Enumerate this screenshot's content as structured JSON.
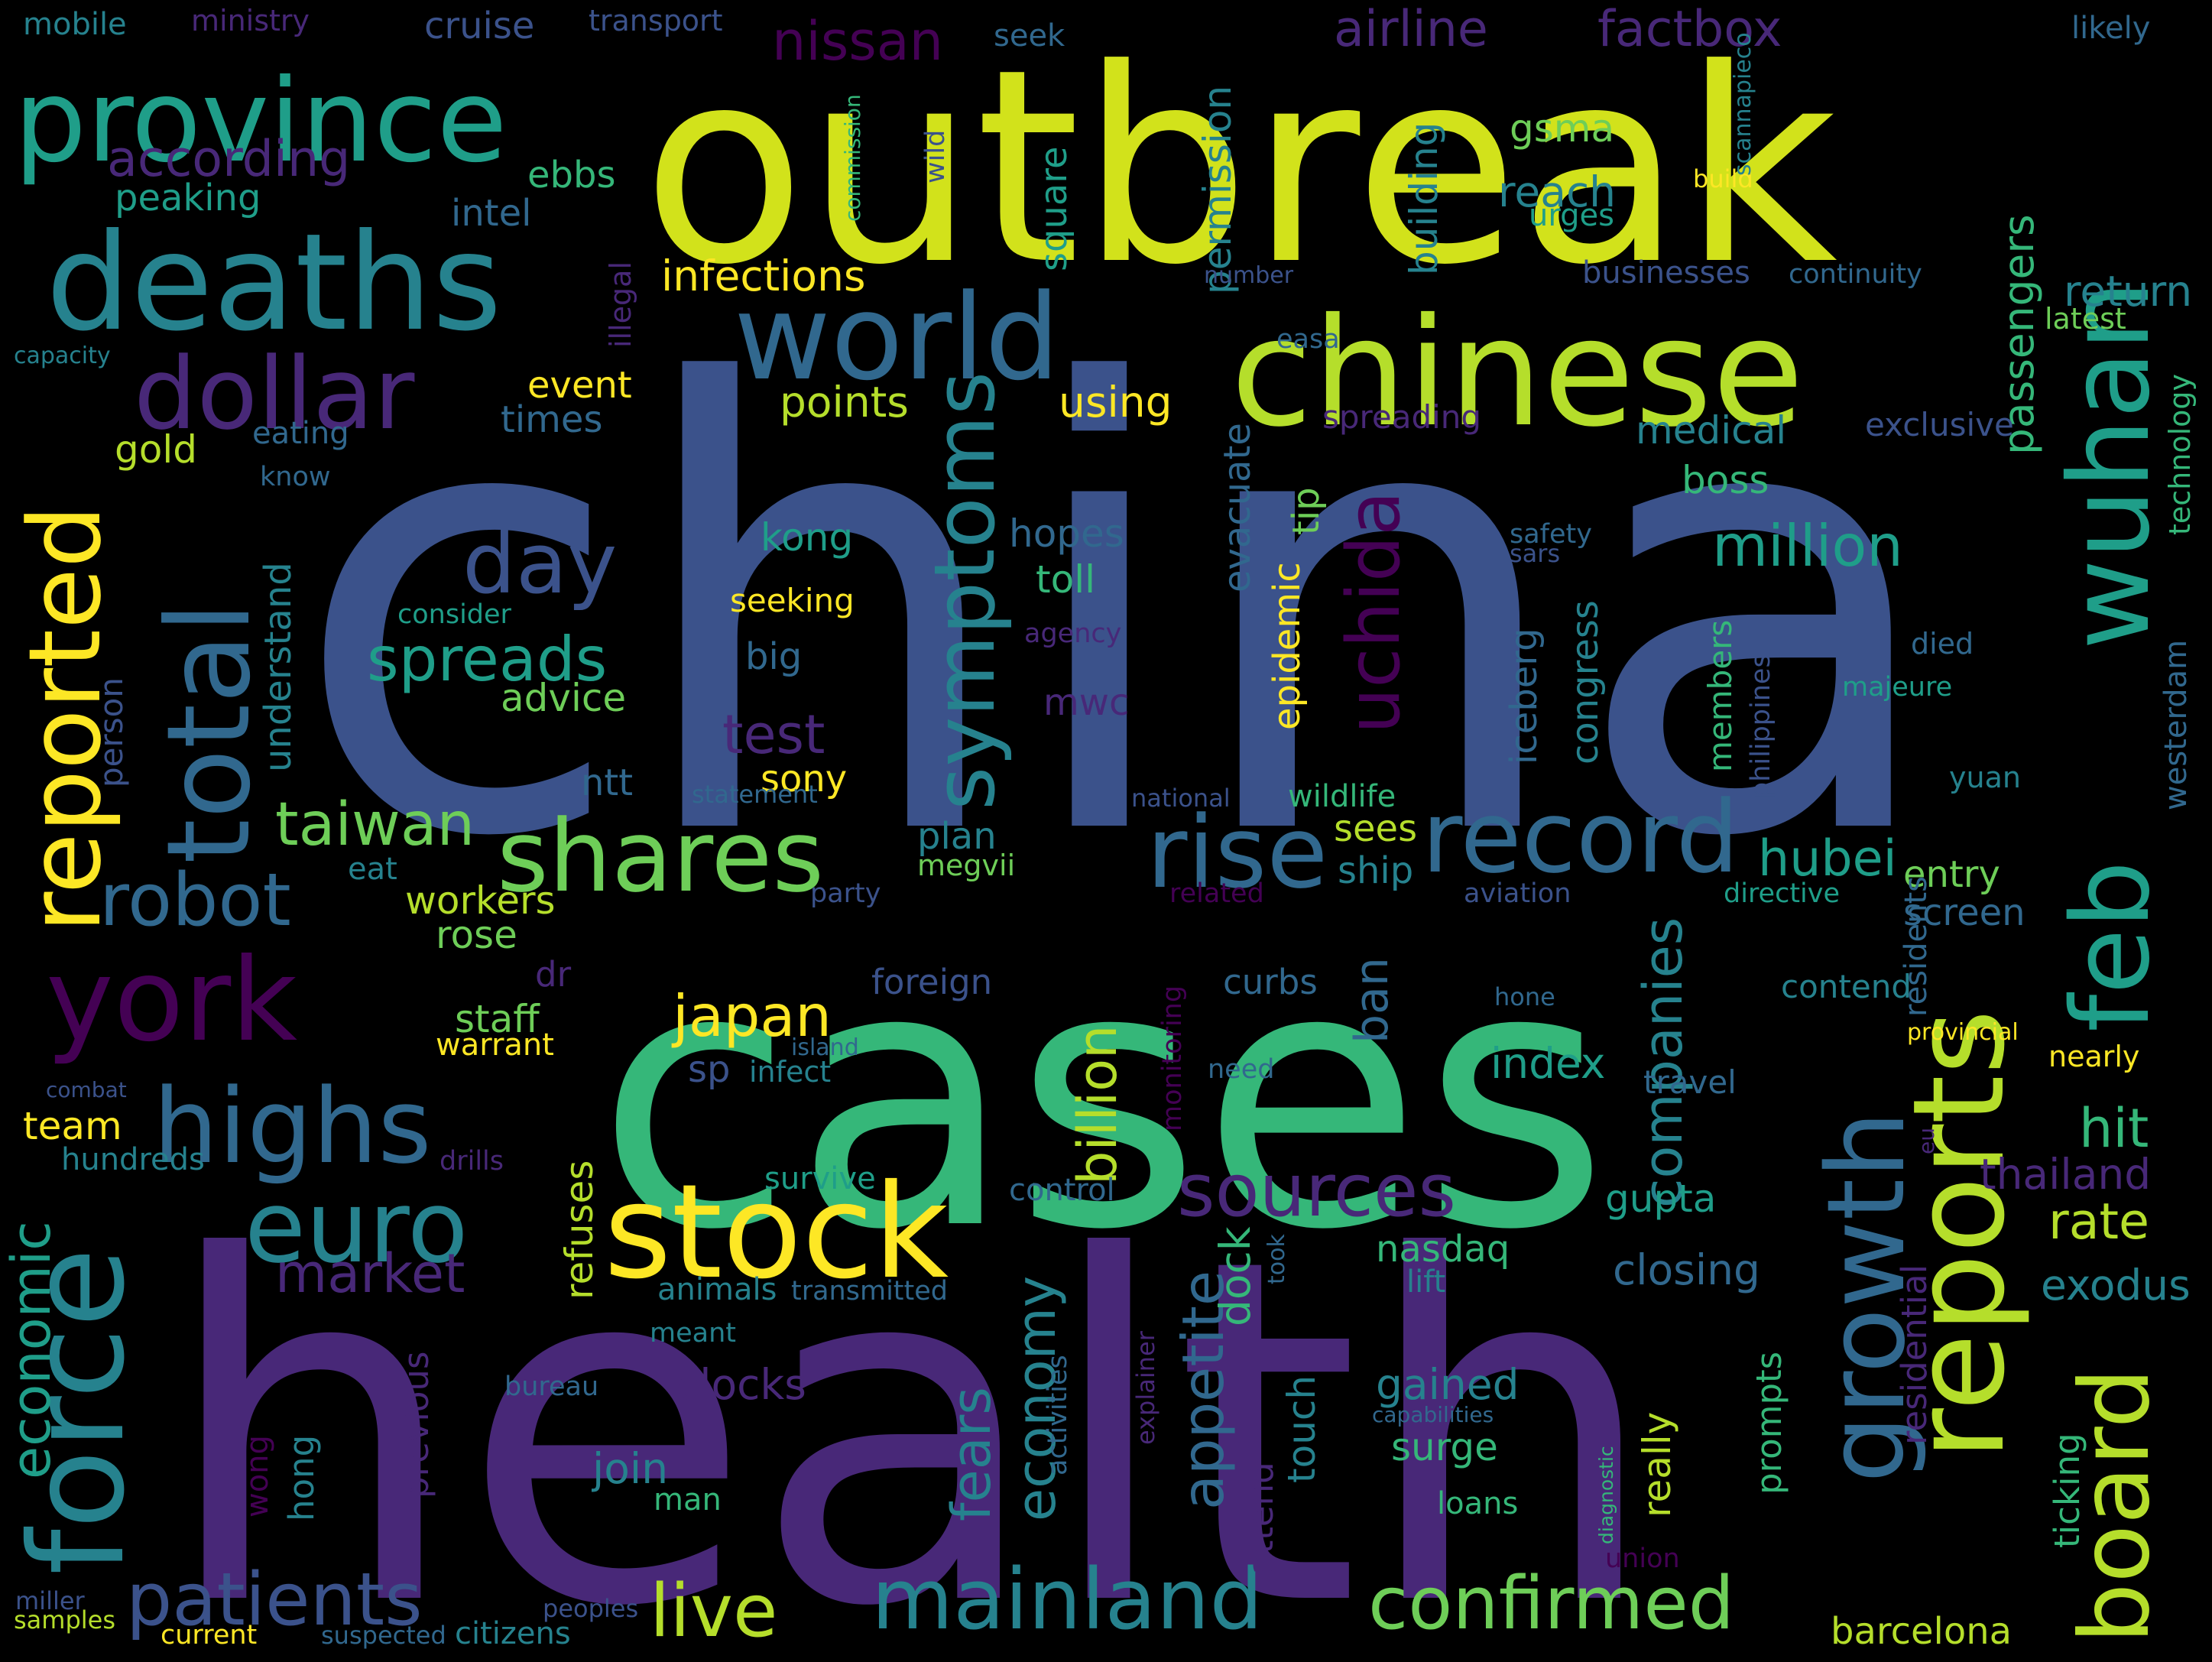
{
  "palette": {
    "c0": "#440154",
    "c1": "#482878",
    "c2": "#3e4989",
    "c3": "#31688e",
    "c4": "#26828e",
    "c5": "#1f9e89",
    "c6": "#35b779",
    "c7": "#6ece58",
    "c8": "#b5de2b",
    "c9": "#fde725"
  },
  "words": [
    {
      "text": "china",
      "color": "#3b528b"
    },
    {
      "text": "health",
      "color": "#482878"
    },
    {
      "text": "cases",
      "color": "#35b779"
    },
    {
      "text": "outbreak",
      "color": "#d2e21b"
    },
    {
      "text": "chinese",
      "color": "#b5de2b"
    },
    {
      "text": "deaths",
      "color": "#26828e"
    },
    {
      "text": "province",
      "color": "#1f9e89"
    },
    {
      "text": "world",
      "color": "#31688e"
    },
    {
      "text": "dollar",
      "color": "#482878"
    },
    {
      "text": "reported",
      "color": "#fde725"
    },
    {
      "text": "total",
      "color": "#31688e"
    },
    {
      "text": "york",
      "color": "#440154"
    },
    {
      "text": "highs",
      "color": "#31688e"
    },
    {
      "text": "force",
      "color": "#26828e"
    },
    {
      "text": "euro",
      "color": "#26828e"
    },
    {
      "text": "stock",
      "color": "#fde725"
    },
    {
      "text": "shares",
      "color": "#6ece58"
    },
    {
      "text": "rise",
      "color": "#31688e"
    },
    {
      "text": "record",
      "color": "#31688e"
    },
    {
      "text": "reports",
      "color": "#b5de2b"
    },
    {
      "text": "wuhan",
      "color": "#1f9e89"
    },
    {
      "text": "feb",
      "color": "#1f9e89"
    },
    {
      "text": "board",
      "color": "#b5de2b"
    },
    {
      "text": "growth",
      "color": "#31688e"
    },
    {
      "text": "mainland",
      "color": "#26828e"
    },
    {
      "text": "confirmed",
      "color": "#6ece58"
    },
    {
      "text": "live",
      "color": "#b5de2b"
    },
    {
      "text": "patients",
      "color": "#3b528b"
    },
    {
      "text": "day",
      "color": "#3b528b"
    },
    {
      "text": "symptoms",
      "color": "#26828e"
    },
    {
      "text": "spreads",
      "color": "#1f9e89"
    },
    {
      "text": "uchida",
      "color": "#440154"
    },
    {
      "text": "robot",
      "color": "#31688e"
    },
    {
      "text": "taiwan",
      "color": "#6ece58"
    },
    {
      "text": "sources",
      "color": "#482878"
    },
    {
      "text": "japan",
      "color": "#fde725"
    },
    {
      "text": "million",
      "color": "#1f9e89"
    },
    {
      "text": "hubei",
      "color": "#1f9e89"
    },
    {
      "text": "test",
      "color": "#482878"
    },
    {
      "text": "nissan",
      "color": "#440154"
    },
    {
      "text": "airline",
      "color": "#482878"
    },
    {
      "text": "factbox",
      "color": "#482878"
    },
    {
      "text": "according",
      "color": "#482878"
    },
    {
      "text": "infections",
      "color": "#fde725"
    },
    {
      "text": "market",
      "color": "#482878"
    },
    {
      "text": "economic",
      "color": "#1f9e89"
    },
    {
      "text": "hit",
      "color": "#35b779"
    },
    {
      "text": "rate",
      "color": "#b5de2b"
    },
    {
      "text": "companies",
      "color": "#26828e"
    },
    {
      "text": "billion",
      "color": "#b5de2b"
    },
    {
      "text": "economy",
      "color": "#26828e"
    },
    {
      "text": "fears",
      "color": "#26828e"
    },
    {
      "text": "appetite",
      "color": "#31688e"
    },
    {
      "text": "clocks",
      "color": "#482878"
    },
    {
      "text": "gained",
      "color": "#26828e"
    },
    {
      "text": "thailand",
      "color": "#482878"
    },
    {
      "text": "exodus",
      "color": "#26828e"
    },
    {
      "text": "closing",
      "color": "#31688e"
    },
    {
      "text": "passengers",
      "color": "#35b779"
    },
    {
      "text": "return",
      "color": "#26828e"
    },
    {
      "text": "permission",
      "color": "#26828e"
    },
    {
      "text": "building",
      "color": "#26828e"
    },
    {
      "text": "gsma",
      "color": "#6ece58"
    },
    {
      "text": "reach",
      "color": "#26828e"
    },
    {
      "text": "urges",
      "color": "#1f9e89"
    },
    {
      "text": "medical",
      "color": "#26828e"
    },
    {
      "text": "boss",
      "color": "#35b779"
    },
    {
      "text": "exclusive",
      "color": "#3b528b"
    },
    {
      "text": "latest",
      "color": "#6ece58"
    },
    {
      "text": "technology",
      "color": "#35b779"
    },
    {
      "text": "westerdam",
      "color": "#31688e"
    },
    {
      "text": "mobile",
      "color": "#26828e"
    },
    {
      "text": "ministry",
      "color": "#482878"
    },
    {
      "text": "cruise",
      "color": "#3b528b"
    },
    {
      "text": "transport",
      "color": "#3b528b"
    },
    {
      "text": "seek",
      "color": "#31688e"
    },
    {
      "text": "likely",
      "color": "#31688e"
    },
    {
      "text": "peaking",
      "color": "#1f9e89"
    },
    {
      "text": "ebbs",
      "color": "#35b779"
    },
    {
      "text": "intel",
      "color": "#31688e"
    },
    {
      "text": "illegal",
      "color": "#482878"
    },
    {
      "text": "commission",
      "color": "#35b779"
    },
    {
      "text": "wild",
      "color": "#3b528b"
    },
    {
      "text": "square",
      "color": "#1f9e89"
    },
    {
      "text": "build",
      "color": "#fde725"
    },
    {
      "text": "scannapieco",
      "color": "#26828e"
    },
    {
      "text": "number",
      "color": "#3b528b"
    },
    {
      "text": "easa",
      "color": "#31688e"
    },
    {
      "text": "businesses",
      "color": "#3b528b"
    },
    {
      "text": "continuity",
      "color": "#31688e"
    },
    {
      "text": "capacity",
      "color": "#26828e"
    },
    {
      "text": "event",
      "color": "#fde725"
    },
    {
      "text": "times",
      "color": "#31688e"
    },
    {
      "text": "points",
      "color": "#b5de2b"
    },
    {
      "text": "using",
      "color": "#fde725"
    },
    {
      "text": "spreading",
      "color": "#482878"
    },
    {
      "text": "gold",
      "color": "#b5de2b"
    },
    {
      "text": "eating",
      "color": "#31688e"
    },
    {
      "text": "know",
      "color": "#31688e"
    },
    {
      "text": "evacuate",
      "color": "#31688e"
    },
    {
      "text": "tip",
      "color": "#6ece58"
    },
    {
      "text": "epidemic",
      "color": "#fde725"
    },
    {
      "text": "hopes",
      "color": "#31688e"
    },
    {
      "text": "kong",
      "color": "#1f9e89"
    },
    {
      "text": "toll",
      "color": "#35b779"
    },
    {
      "text": "seeking",
      "color": "#fde725"
    },
    {
      "text": "big",
      "color": "#31688e"
    },
    {
      "text": "agency",
      "color": "#482878"
    },
    {
      "text": "understand",
      "color": "#26828e"
    },
    {
      "text": "consider",
      "color": "#1f9e89"
    },
    {
      "text": "safety",
      "color": "#31688e"
    },
    {
      "text": "sars",
      "color": "#3b528b"
    },
    {
      "text": "died",
      "color": "#31688e"
    },
    {
      "text": "majeure",
      "color": "#1f9e89"
    },
    {
      "text": "philippines",
      "color": "#3b528b"
    },
    {
      "text": "congress",
      "color": "#26828e"
    },
    {
      "text": "iceberg",
      "color": "#31688e"
    },
    {
      "text": "members",
      "color": "#35b779"
    },
    {
      "text": "advice",
      "color": "#6ece58"
    },
    {
      "text": "person",
      "color": "#3b528b"
    },
    {
      "text": "mwc",
      "color": "#482878"
    },
    {
      "text": "ntt",
      "color": "#31688e"
    },
    {
      "text": "sony",
      "color": "#fde725"
    },
    {
      "text": "statement",
      "color": "#31688e"
    },
    {
      "text": "national",
      "color": "#3b528b"
    },
    {
      "text": "wildlife",
      "color": "#35b779"
    },
    {
      "text": "yuan",
      "color": "#26828e"
    },
    {
      "text": "sees",
      "color": "#b5de2b"
    },
    {
      "text": "ship",
      "color": "#26828e"
    },
    {
      "text": "entry",
      "color": "#6ece58"
    },
    {
      "text": "screen",
      "color": "#31688e"
    },
    {
      "text": "plan",
      "color": "#26828e"
    },
    {
      "text": "megvii",
      "color": "#6ece58"
    },
    {
      "text": "eat",
      "color": "#26828e"
    },
    {
      "text": "party",
      "color": "#3b528b"
    },
    {
      "text": "related",
      "color": "#440154"
    },
    {
      "text": "aviation",
      "color": "#3b528b"
    },
    {
      "text": "directive",
      "color": "#1f9e89"
    },
    {
      "text": "workers",
      "color": "#b5de2b"
    },
    {
      "text": "rose",
      "color": "#6ece58"
    },
    {
      "text": "residents",
      "color": "#31688e"
    },
    {
      "text": "dr",
      "color": "#482878"
    },
    {
      "text": "foreign",
      "color": "#3b528b"
    },
    {
      "text": "contend",
      "color": "#26828e"
    },
    {
      "text": "staff",
      "color": "#6ece58"
    },
    {
      "text": "warrant",
      "color": "#fde725"
    },
    {
      "text": "ban",
      "color": "#31688e"
    },
    {
      "text": "curbs",
      "color": "#31688e"
    },
    {
      "text": "hone",
      "color": "#31688e"
    },
    {
      "text": "provincial",
      "color": "#fde725"
    },
    {
      "text": "sp",
      "color": "#3b528b"
    },
    {
      "text": "island",
      "color": "#31688e"
    },
    {
      "text": "infect",
      "color": "#26828e"
    },
    {
      "text": "monitoring",
      "color": "#440154"
    },
    {
      "text": "need",
      "color": "#31688e"
    },
    {
      "text": "index",
      "color": "#1f9e89"
    },
    {
      "text": "travel",
      "color": "#31688e"
    },
    {
      "text": "nearly",
      "color": "#fde725"
    },
    {
      "text": "combat",
      "color": "#3b528b"
    },
    {
      "text": "team",
      "color": "#fde725"
    },
    {
      "text": "hundreds",
      "color": "#26828e"
    },
    {
      "text": "drills",
      "color": "#482878"
    },
    {
      "text": "survive",
      "color": "#1f9e89"
    },
    {
      "text": "control",
      "color": "#31688e"
    },
    {
      "text": "gupta",
      "color": "#1f9e89"
    },
    {
      "text": "eu",
      "color": "#482878"
    },
    {
      "text": "residential",
      "color": "#482878"
    },
    {
      "text": "dock",
      "color": "#35b779"
    },
    {
      "text": "nasdaq",
      "color": "#35b779"
    },
    {
      "text": "refuses",
      "color": "#b5de2b"
    },
    {
      "text": "animals",
      "color": "#26828e"
    },
    {
      "text": "transmitted",
      "color": "#31688e"
    },
    {
      "text": "took",
      "color": "#31688e"
    },
    {
      "text": "lift",
      "color": "#26828e"
    },
    {
      "text": "meant",
      "color": "#26828e"
    },
    {
      "text": "bureau",
      "color": "#31688e"
    },
    {
      "text": "explainer",
      "color": "#482878"
    },
    {
      "text": "activities",
      "color": "#31688e"
    },
    {
      "text": "capabilities",
      "color": "#31688e"
    },
    {
      "text": "touch",
      "color": "#26828e"
    },
    {
      "text": "attend",
      "color": "#482878"
    },
    {
      "text": "surge",
      "color": "#35b779"
    },
    {
      "text": "really",
      "color": "#b5de2b"
    },
    {
      "text": "prompts",
      "color": "#35b779"
    },
    {
      "text": "ticking",
      "color": "#35b779"
    },
    {
      "text": "diagnostic",
      "color": "#35b779"
    },
    {
      "text": "wong",
      "color": "#440154"
    },
    {
      "text": "hong",
      "color": "#26828e"
    },
    {
      "text": "previous",
      "color": "#482878"
    },
    {
      "text": "join",
      "color": "#26828e"
    },
    {
      "text": "man",
      "color": "#35b779"
    },
    {
      "text": "loans",
      "color": "#35b779"
    },
    {
      "text": "union",
      "color": "#440154"
    },
    {
      "text": "miller",
      "color": "#3b528b"
    },
    {
      "text": "samples",
      "color": "#b5de2b"
    },
    {
      "text": "current",
      "color": "#fde725"
    },
    {
      "text": "suspected",
      "color": "#31688e"
    },
    {
      "text": "peoples",
      "color": "#3b528b"
    },
    {
      "text": "citizens",
      "color": "#26828e"
    },
    {
      "text": "barcelona",
      "color": "#b5de2b"
    }
  ]
}
